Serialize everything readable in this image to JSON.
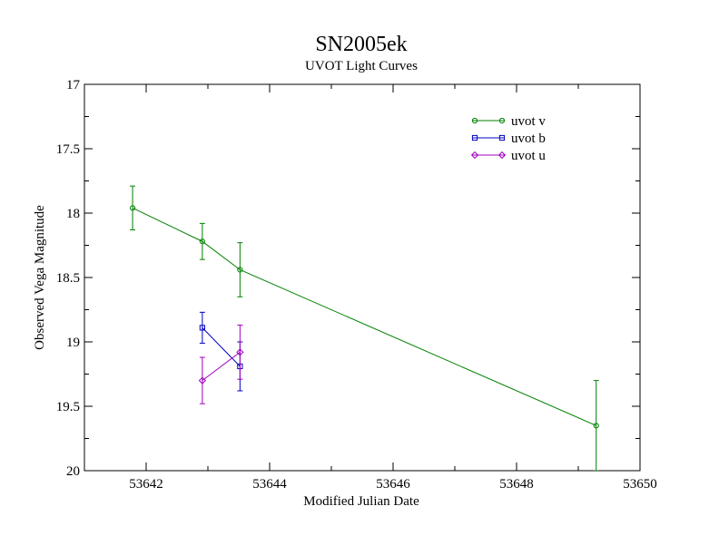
{
  "chart_data": {
    "type": "scatter",
    "title": "SN2005ek",
    "subtitle": "UVOT Light Curves",
    "xlabel": "Modified Julian Date",
    "ylabel": "Observed Vega Magnitude",
    "xlim": [
      53641,
      53650
    ],
    "ylim": [
      17,
      20
    ],
    "y_inverted": true,
    "x_ticks": [
      53642,
      53644,
      53646,
      53648,
      53650
    ],
    "y_ticks": [
      17,
      17.5,
      18,
      18.5,
      19,
      19.5,
      20
    ],
    "grid": false,
    "legend_position": "top-right",
    "series": [
      {
        "name": "uvot v",
        "color": "#008000",
        "marker": "circle",
        "points": [
          {
            "x": 53641.78,
            "y": 17.96,
            "err": 0.17
          },
          {
            "x": 53642.91,
            "y": 18.22,
            "err": 0.14
          },
          {
            "x": 53643.52,
            "y": 18.44,
            "err": 0.21
          },
          {
            "x": 53649.29,
            "y": 19.65,
            "err": 0.35
          }
        ]
      },
      {
        "name": "uvot b",
        "color": "#0000c0",
        "marker": "square",
        "points": [
          {
            "x": 53642.91,
            "y": 18.89,
            "err": 0.12
          },
          {
            "x": 53643.52,
            "y": 19.19,
            "err": 0.19
          }
        ]
      },
      {
        "name": "uvot u",
        "color": "#a000c0",
        "marker": "diamond",
        "points": [
          {
            "x": 53642.91,
            "y": 19.3,
            "err": 0.18
          },
          {
            "x": 53643.52,
            "y": 19.08,
            "err": 0.21
          }
        ]
      }
    ]
  }
}
